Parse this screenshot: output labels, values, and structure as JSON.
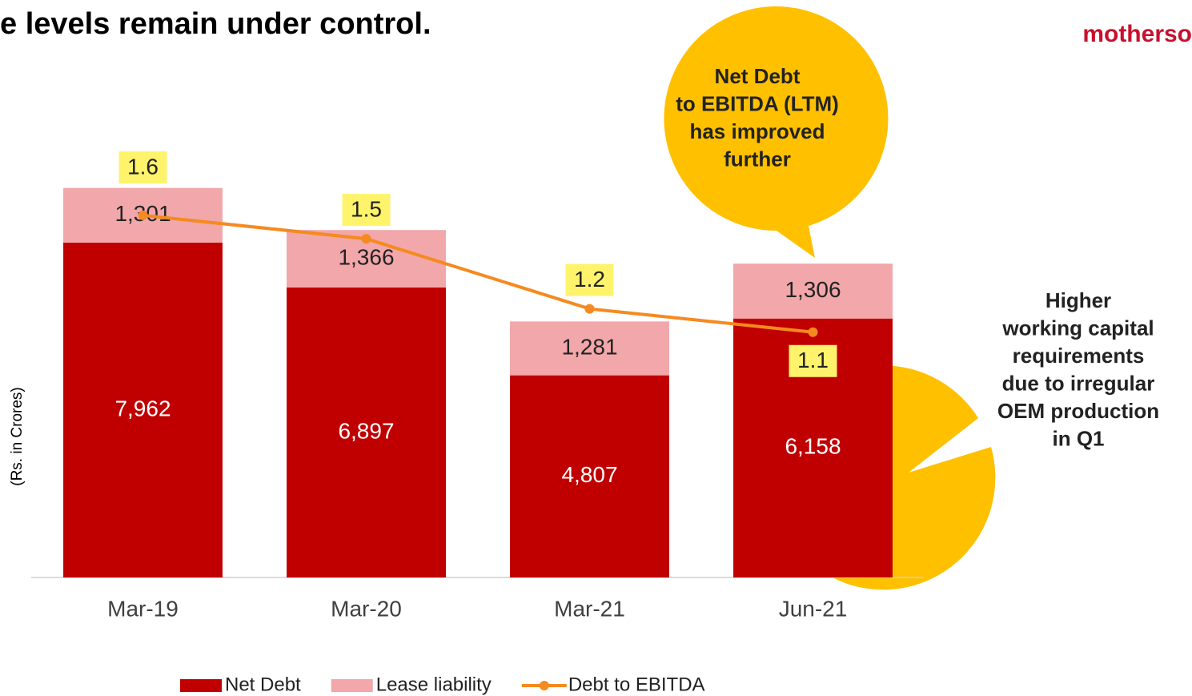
{
  "chart_data": {
    "type": "bar",
    "title": "e levels remain under control.",
    "logo": "motherso",
    "y_label": "(Rs. in Crores)",
    "categories": [
      "Mar-19",
      "Mar-20",
      "Mar-21",
      "Jun-21"
    ],
    "stacked": true,
    "ylim": [
      0,
      10000
    ],
    "y2lim": [
      0.05,
      1.85
    ],
    "series": [
      {
        "name": "Net Debt",
        "color": "#c00000",
        "values": [
          7962,
          6897,
          4807,
          6158
        ],
        "value_labels": [
          "7,962",
          "6,897",
          "4,807",
          "6,158"
        ]
      },
      {
        "name": "Lease liability",
        "color": "#f2a7aa",
        "values": [
          1301,
          1366,
          1281,
          1306
        ],
        "value_labels": [
          "1,301",
          "1,366",
          "1,281",
          "1,306"
        ]
      },
      {
        "name": "Debt to EBITDA",
        "type": "line",
        "axis": "y2",
        "color": "#f58a1f",
        "values": [
          1.6,
          1.5,
          1.2,
          1.1
        ]
      }
    ],
    "annotations": [
      {
        "lines": [
          "Net Debt",
          "to EBITDA (LTM)",
          "has improved",
          "further"
        ]
      },
      {
        "lines": [
          "Higher",
          "working capital",
          "requirements",
          "due to irregular",
          "OEM production",
          "in Q1"
        ]
      }
    ],
    "legend": "bottom"
  }
}
